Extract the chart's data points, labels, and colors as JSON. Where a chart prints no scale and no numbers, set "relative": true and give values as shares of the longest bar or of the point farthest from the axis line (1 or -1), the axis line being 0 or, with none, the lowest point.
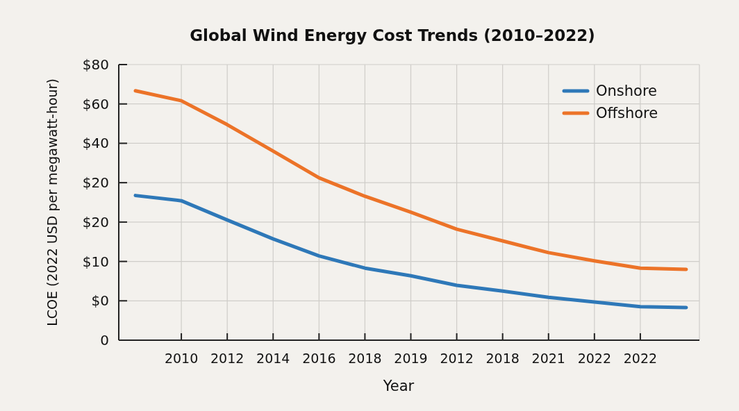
{
  "chart_data": {
    "type": "line",
    "title": "Global Wind Energy Cost Trends (2010–2022)",
    "xlabel": "Year",
    "ylabel": "LCOE (2022 USD per megawatt-hour)",
    "categories": [
      null,
      "2010",
      "2012",
      "2014",
      "2016",
      "2018",
      "2019",
      "2012",
      "2018",
      "2021",
      "2022",
      "2022",
      null
    ],
    "relative": true,
    "annotations": [
      "$80",
      "$60",
      "$40",
      "$20",
      "$20",
      "$10",
      "$0",
      "0"
    ],
    "grid": true,
    "legend": "top right",
    "line_style": "solid",
    "marker": "none",
    "series": [
      {
        "name": "Onshore",
        "color": "#2e78b8",
        "values": [
          0.58,
          0.559,
          0.482,
          0.406,
          0.338,
          0.289,
          0.258,
          0.22,
          0.197,
          0.172,
          0.153,
          0.134,
          0.131
        ]
      },
      {
        "name": "Offshore",
        "color": "#ec7328",
        "values": [
          1,
          0.96,
          0.864,
          0.758,
          0.651,
          0.577,
          0.513,
          0.445,
          0.398,
          0.351,
          0.318,
          0.289,
          0.284
        ]
      }
    ]
  }
}
